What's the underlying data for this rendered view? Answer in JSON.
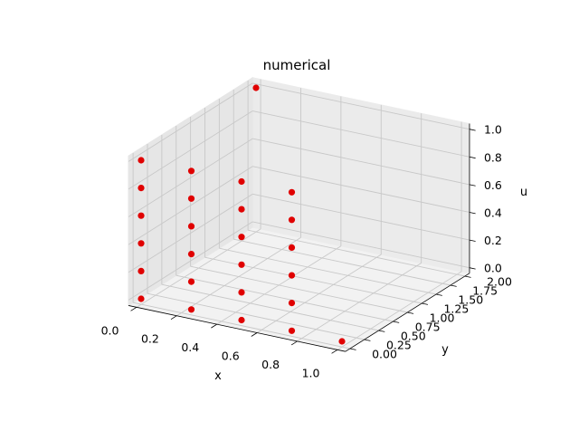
{
  "chart_data": {
    "type": "scatter",
    "projection": "3d",
    "title": "numerical",
    "xlabel": "x",
    "ylabel": "y",
    "zlabel": "u",
    "xlim": [
      0.0,
      1.0
    ],
    "ylim": [
      0.0,
      2.0
    ],
    "zlim": [
      0.0,
      1.0
    ],
    "x_ticks": [
      "0.0",
      "0.2",
      "0.4",
      "0.6",
      "0.8",
      "1.0"
    ],
    "y_ticks": [
      "0.00",
      "0.25",
      "0.50",
      "0.75",
      "1.00",
      "1.25",
      "1.50",
      "1.75",
      "2.00"
    ],
    "z_ticks": [
      "0.0",
      "0.2",
      "0.4",
      "0.6",
      "0.8",
      "1.0"
    ],
    "grid": true,
    "marker_color": "#e00000",
    "points": [
      {
        "x": 0.0,
        "y": 0.0,
        "z": 0.0
      },
      {
        "x": 0.0,
        "y": 0.0,
        "z": 0.2
      },
      {
        "x": 0.0,
        "y": 0.0,
        "z": 0.4
      },
      {
        "x": 0.0,
        "y": 0.0,
        "z": 0.6
      },
      {
        "x": 0.0,
        "y": 0.0,
        "z": 0.8
      },
      {
        "x": 0.0,
        "y": 0.0,
        "z": 1.0
      },
      {
        "x": 0.0,
        "y": 2.0,
        "z": 1.0
      },
      {
        "x": 0.25,
        "y": 0.0,
        "z": 0.0
      },
      {
        "x": 0.25,
        "y": 0.0,
        "z": 0.2
      },
      {
        "x": 0.25,
        "y": 0.0,
        "z": 0.4
      },
      {
        "x": 0.25,
        "y": 0.0,
        "z": 0.6
      },
      {
        "x": 0.25,
        "y": 0.0,
        "z": 0.8
      },
      {
        "x": 0.25,
        "y": 0.0,
        "z": 1.0
      },
      {
        "x": 0.5,
        "y": 0.0,
        "z": 0.0
      },
      {
        "x": 0.5,
        "y": 0.0,
        "z": 0.2
      },
      {
        "x": 0.5,
        "y": 0.0,
        "z": 0.4
      },
      {
        "x": 0.5,
        "y": 0.0,
        "z": 0.6
      },
      {
        "x": 0.5,
        "y": 0.0,
        "z": 0.8
      },
      {
        "x": 0.5,
        "y": 0.0,
        "z": 1.0
      },
      {
        "x": 0.75,
        "y": 0.0,
        "z": 0.0
      },
      {
        "x": 0.75,
        "y": 0.0,
        "z": 0.2
      },
      {
        "x": 0.75,
        "y": 0.0,
        "z": 0.4
      },
      {
        "x": 0.75,
        "y": 0.0,
        "z": 0.6
      },
      {
        "x": 0.75,
        "y": 0.0,
        "z": 0.8
      },
      {
        "x": 0.75,
        "y": 0.0,
        "z": 1.0
      },
      {
        "x": 1.0,
        "y": 0.0,
        "z": 0.0
      }
    ]
  }
}
